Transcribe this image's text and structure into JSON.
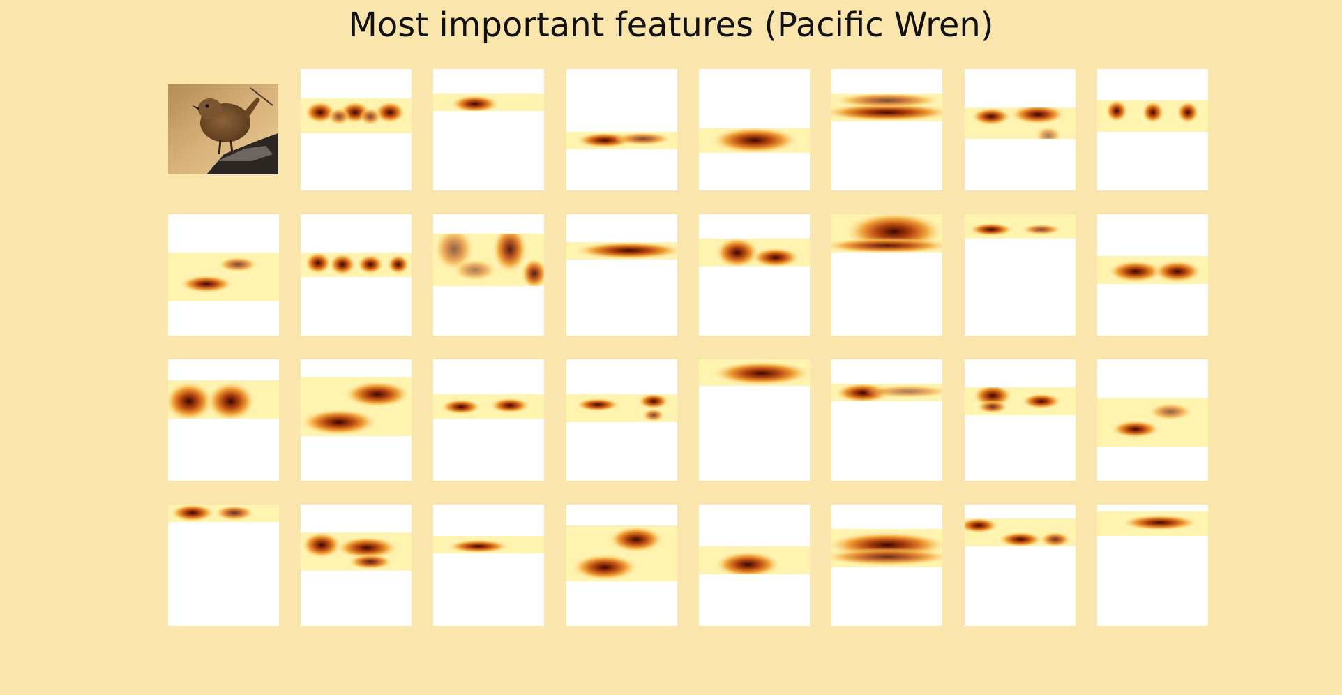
{
  "title": "Most important features (Pacific Wren)",
  "grid": {
    "rows": 4,
    "cols": 8
  },
  "input_image": {
    "subject": "pacific-wren-photo"
  },
  "colormap": {
    "low": "#ffffff",
    "mid_low": "#fff3b0",
    "mid": "#f2a53a",
    "mid_high": "#b5460f",
    "high": "#3b0600"
  },
  "feature_maps": [
    {
      "id": "r1c2"
    },
    {
      "id": "r1c3"
    },
    {
      "id": "r1c4"
    },
    {
      "id": "r1c5"
    },
    {
      "id": "r1c6"
    },
    {
      "id": "r1c7"
    },
    {
      "id": "r1c8"
    },
    {
      "id": "r2c1"
    },
    {
      "id": "r2c2"
    },
    {
      "id": "r2c3"
    },
    {
      "id": "r2c4"
    },
    {
      "id": "r2c5"
    },
    {
      "id": "r2c6"
    },
    {
      "id": "r2c7"
    },
    {
      "id": "r2c8"
    },
    {
      "id": "r3c1"
    },
    {
      "id": "r3c2"
    },
    {
      "id": "r3c3"
    },
    {
      "id": "r3c4"
    },
    {
      "id": "r3c5"
    },
    {
      "id": "r3c6"
    },
    {
      "id": "r3c7"
    },
    {
      "id": "r3c8"
    },
    {
      "id": "r4c1"
    },
    {
      "id": "r4c2"
    },
    {
      "id": "r4c3"
    },
    {
      "id": "r4c4"
    },
    {
      "id": "r4c5"
    },
    {
      "id": "r4c6"
    },
    {
      "id": "r4c7"
    },
    {
      "id": "r4c8"
    }
  ]
}
